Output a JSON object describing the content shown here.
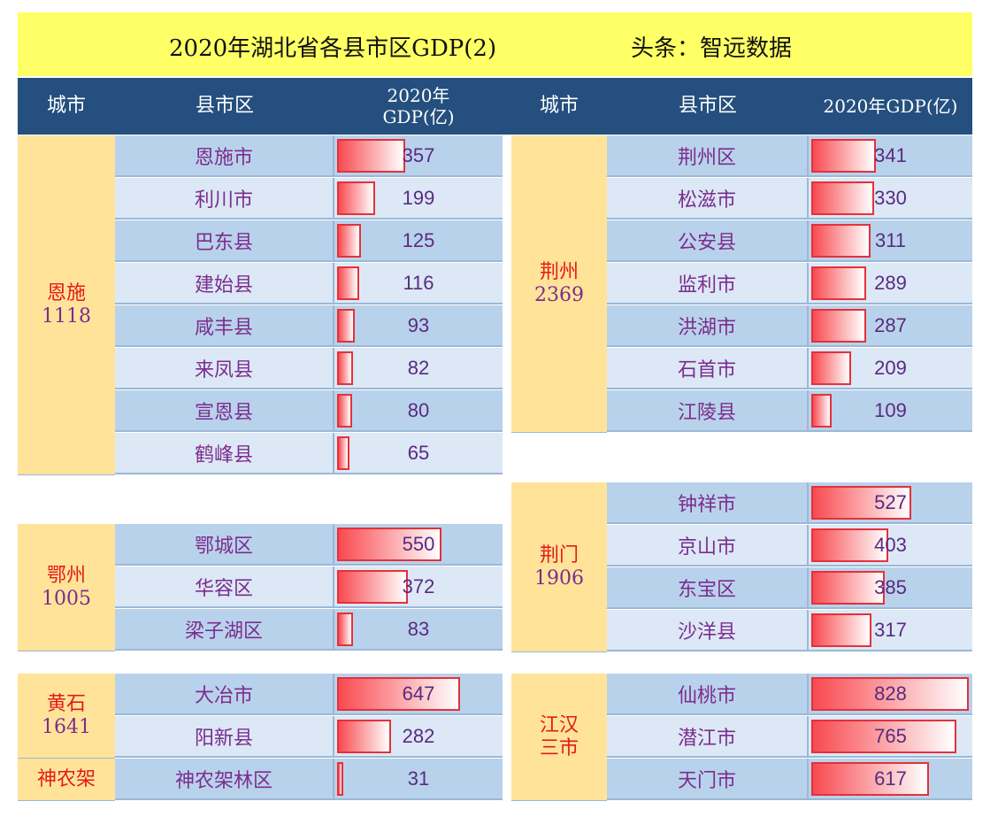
{
  "title": "2020年湖北省各县市区GDP(2)",
  "source": "头条：智远数据",
  "headers": {
    "left": {
      "city": "城市",
      "county": "县市区",
      "gdp": "2020年\nGDP(亿)"
    },
    "right": {
      "city": "城市",
      "county": "县市区",
      "gdp": "2020年GDP(亿)"
    }
  },
  "chart_data": {
    "type": "table",
    "title": "2020年湖北省各县市区GDP(2)",
    "unit": "亿",
    "groups": [
      {
        "city": "恩施",
        "total": "1118",
        "counties": [
          {
            "name": "恩施市",
            "gdp": 357
          },
          {
            "name": "利川市",
            "gdp": 199
          },
          {
            "name": "巴东县",
            "gdp": 125
          },
          {
            "name": "建始县",
            "gdp": 116
          },
          {
            "name": "咸丰县",
            "gdp": 93
          },
          {
            "name": "来凤县",
            "gdp": 82
          },
          {
            "name": "宣恩县",
            "gdp": 80
          },
          {
            "name": "鹤峰县",
            "gdp": 65
          }
        ]
      },
      {
        "city": "鄂州",
        "total": "1005",
        "counties": [
          {
            "name": "鄂城区",
            "gdp": 550
          },
          {
            "name": "华容区",
            "gdp": 372
          },
          {
            "name": "梁子湖区",
            "gdp": 83
          }
        ]
      },
      {
        "city": "黄石",
        "total": "1641",
        "counties": [
          {
            "name": "大冶市",
            "gdp": 647
          },
          {
            "name": "阳新县",
            "gdp": 282
          }
        ]
      },
      {
        "city": "神农架",
        "total": "",
        "counties": [
          {
            "name": "神农架林区",
            "gdp": 31
          }
        ]
      },
      {
        "city": "荆州",
        "total": "2369",
        "counties": [
          {
            "name": "荆州区",
            "gdp": 341
          },
          {
            "name": "松滋市",
            "gdp": 330
          },
          {
            "name": "公安县",
            "gdp": 311
          },
          {
            "name": "监利市",
            "gdp": 289
          },
          {
            "name": "洪湖市",
            "gdp": 287
          },
          {
            "name": "石首市",
            "gdp": 209
          },
          {
            "name": "江陵县",
            "gdp": 109
          }
        ]
      },
      {
        "city": "荆门",
        "total": "1906",
        "counties": [
          {
            "name": "钟祥市",
            "gdp": 527
          },
          {
            "name": "京山市",
            "gdp": 403
          },
          {
            "name": "东宝区",
            "gdp": 385
          },
          {
            "name": "沙洋县",
            "gdp": 317
          }
        ]
      },
      {
        "city": "江汉\n三市",
        "total": "",
        "counties": [
          {
            "name": "仙桃市",
            "gdp": 828
          },
          {
            "name": "潜江市",
            "gdp": 765
          },
          {
            "name": "天门市",
            "gdp": 617
          }
        ]
      }
    ],
    "bar_max": 828,
    "colors": {
      "header": "#244f7e",
      "title_bg": "#ffff66",
      "city_bg": "#ffe399",
      "bar": "#e4313b",
      "city_text": "#e31b1b",
      "value_text": "#5a2a82"
    }
  }
}
